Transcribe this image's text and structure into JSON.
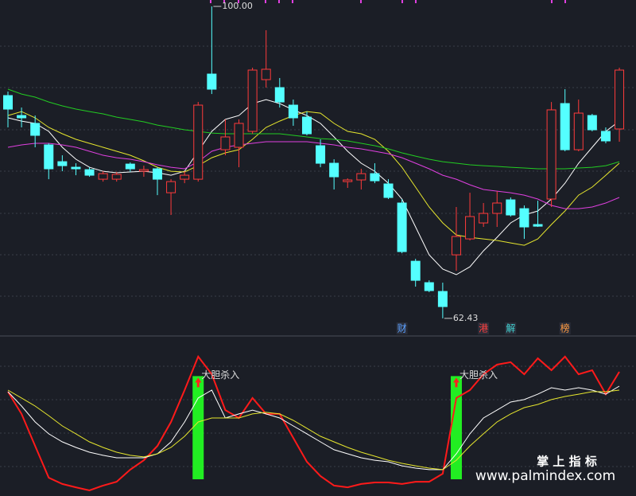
{
  "chart_data": [
    {
      "type": "candlestick",
      "ylim": [
        60.5,
        100.77
      ],
      "up_color": "#ff3b3b",
      "down_color": "#54ffff",
      "open": [
        89.26,
        86.86,
        85.91,
        83.32,
        81.3,
        80.63,
        80.34,
        79.19,
        79.19,
        81.01,
        80.15,
        80.44,
        77.56,
        79.19,
        79.19,
        91.85,
        82.74,
        83.03,
        84.95,
        91.18,
        90.22,
        88.11,
        86.67,
        83.22,
        81.11,
        78.9,
        79.1,
        79.86,
        78.62,
        76.32,
        69.31,
        66.73,
        65.67,
        70.08,
        72.0,
        73.92,
        75.07,
        76.7,
        75.64,
        73.73,
        76.8,
        88.3,
        82.74,
        86.86,
        84.95,
        85.24
      ],
      "close": [
        87.63,
        86.58,
        84.47,
        80.44,
        80.82,
        80.44,
        79.67,
        79.86,
        79.77,
        80.44,
        80.34,
        79.19,
        78.9,
        79.67,
        88.11,
        90.03,
        84.28,
        85.91,
        92.33,
        92.43,
        88.49,
        86.58,
        84.66,
        81.11,
        79.48,
        79.1,
        79.86,
        79.0,
        76.99,
        70.47,
        67.01,
        65.77,
        63.85,
        72.29,
        74.69,
        75.07,
        76.32,
        74.88,
        73.44,
        73.53,
        87.54,
        82.74,
        87.15,
        85.14,
        83.8,
        92.33
      ],
      "high": [
        89.74,
        87.82,
        86.86,
        83.51,
        82.07,
        81.11,
        80.63,
        80.15,
        80.06,
        81.21,
        80.82,
        80.63,
        79.19,
        80.15,
        88.49,
        100.0,
        86.39,
        86.39,
        92.62,
        97.13,
        91.37,
        88.78,
        87.34,
        83.99,
        81.59,
        79.29,
        80.44,
        81.11,
        79.19,
        76.8,
        69.6,
        67.01,
        66.73,
        75.84,
        77.56,
        76.32,
        77.75,
        76.99,
        76.03,
        76.6,
        88.49,
        90.03,
        88.78,
        87.06,
        85.43,
        92.62
      ],
      "low": [
        85.43,
        85.43,
        83.03,
        79.19,
        80.15,
        79.67,
        79.48,
        78.9,
        78.9,
        80.06,
        79.48,
        77.27,
        74.88,
        78.71,
        78.9,
        89.45,
        82.07,
        80.63,
        84.66,
        90.22,
        87.82,
        85.62,
        84.47,
        80.63,
        77.95,
        78.14,
        77.95,
        78.71,
        76.8,
        70.27,
        66.25,
        65.58,
        62.43,
        68.16,
        71.81,
        73.44,
        73.44,
        74.69,
        72.0,
        73.44,
        75.84,
        82.55,
        82.55,
        84.95,
        83.51,
        83.7
      ],
      "series": [
        {
          "color": "#ffffff",
          "values": [
            86.58,
            86.19,
            85.91,
            84.95,
            83.03,
            81.59,
            80.63,
            80.15,
            79.96,
            80.06,
            80.15,
            79.96,
            79.67,
            80.15,
            82.55,
            84.95,
            86.39,
            86.86,
            88.3,
            88.78,
            88.3,
            87.54,
            86.86,
            85.91,
            84.28,
            82.55,
            81.11,
            80.15,
            78.71,
            76.8,
            73.44,
            70.08,
            68.36,
            67.69,
            68.64,
            70.56,
            72.19,
            73.92,
            74.88,
            75.36,
            76.8,
            78.71,
            81.11,
            83.03,
            84.95,
            86.19
          ]
        },
        {
          "color": "#e6e62e",
          "values": [
            86.86,
            87.34,
            86.58,
            85.43,
            84.66,
            83.99,
            83.51,
            83.03,
            82.55,
            82.07,
            81.4,
            80.63,
            80.15,
            80.06,
            80.82,
            81.78,
            82.36,
            82.74,
            83.99,
            85.43,
            86.19,
            86.86,
            87.34,
            87.15,
            85.91,
            84.95,
            84.66,
            83.99,
            82.55,
            80.63,
            78.24,
            75.84,
            73.92,
            72.48,
            72.19,
            72.0,
            71.81,
            71.52,
            71.23,
            72.0,
            73.73,
            75.36,
            77.27,
            78.24,
            79.67,
            81.11
          ]
        },
        {
          "color": "#e040e0",
          "values": [
            83.03,
            83.32,
            83.51,
            83.51,
            83.32,
            83.03,
            82.55,
            82.07,
            81.78,
            81.59,
            81.3,
            80.92,
            80.63,
            80.44,
            81.3,
            82.55,
            83.03,
            83.32,
            83.51,
            83.7,
            83.7,
            83.7,
            83.7,
            83.51,
            83.32,
            83.03,
            82.84,
            82.55,
            82.26,
            81.78,
            81.11,
            80.44,
            79.67,
            79.19,
            78.52,
            77.95,
            77.75,
            77.56,
            77.27,
            76.8,
            76.03,
            75.64,
            75.64,
            75.84,
            76.32,
            76.99
          ]
        },
        {
          "color": "#22cc22",
          "values": [
            90.03,
            89.45,
            89.07,
            88.49,
            88.02,
            87.63,
            87.34,
            87.06,
            86.67,
            86.39,
            86.1,
            85.71,
            85.43,
            85.14,
            84.95,
            84.75,
            84.66,
            84.66,
            84.66,
            84.66,
            84.66,
            84.47,
            84.28,
            84.08,
            83.99,
            83.8,
            83.51,
            83.22,
            82.84,
            82.36,
            81.97,
            81.59,
            81.3,
            81.11,
            80.92,
            80.82,
            80.73,
            80.63,
            80.54,
            80.44,
            80.44,
            80.44,
            80.54,
            80.63,
            80.82,
            81.3
          ]
        }
      ],
      "annotations": [
        {
          "x": 15,
          "value": 100,
          "label": "100.00"
        },
        {
          "x": 32,
          "value": 62.43,
          "label": "62.43"
        }
      ],
      "events": [
        {
          "x": 29,
          "label": "财",
          "color": "#5aa0ff"
        },
        {
          "x": 35,
          "label": "港",
          "color": "#ff4040"
        },
        {
          "x": 37,
          "label": "解",
          "color": "#40d0d0"
        },
        {
          "x": 41,
          "label": "榜",
          "color": "#ff9a40"
        }
      ]
    },
    {
      "type": "line",
      "ylim": [
        0,
        100
      ],
      "series": [
        {
          "color": "#ff1a1a",
          "values": [
            71.1,
            55.6,
            33.3,
            11.1,
            6.7,
            4.4,
            2.2,
            5.6,
            8.3,
            16.7,
            23.3,
            33.3,
            50.0,
            72.2,
            95.6,
            83.3,
            58.3,
            52.8,
            66.7,
            55.6,
            55.6,
            38.9,
            22.2,
            12.2,
            5.6,
            4.4,
            6.7,
            7.8,
            7.8,
            6.7,
            8.3,
            8.3,
            13.9,
            66.7,
            72.2,
            83.3,
            90.0,
            91.7,
            83.3,
            94.4,
            86.1,
            95.6,
            83.3,
            86.1,
            69.4,
            85.0
          ]
        },
        {
          "color": "#ffffff",
          "values": [
            71.1,
            61.1,
            50.0,
            41.7,
            36.1,
            32.2,
            28.9,
            26.7,
            25.0,
            25.0,
            25.0,
            27.8,
            36.1,
            50.0,
            66.7,
            72.2,
            52.8,
            55.6,
            58.3,
            55.6,
            52.8,
            47.2,
            41.7,
            36.1,
            30.6,
            27.8,
            25.0,
            23.3,
            22.2,
            19.4,
            17.8,
            16.7,
            16.7,
            27.8,
            41.7,
            52.8,
            58.3,
            63.9,
            65.6,
            69.4,
            73.9,
            72.2,
            73.9,
            72.2,
            69.4,
            75.0
          ]
        },
        {
          "color": "#e6e62e",
          "values": [
            72.2,
            66.7,
            61.1,
            54.4,
            47.2,
            41.7,
            36.1,
            32.2,
            28.9,
            26.7,
            25.6,
            27.8,
            32.2,
            40.0,
            50.0,
            52.8,
            52.8,
            52.8,
            55.6,
            56.7,
            55.6,
            51.1,
            45.6,
            40.0,
            36.1,
            32.2,
            28.9,
            26.1,
            23.3,
            21.1,
            19.4,
            17.8,
            16.7,
            23.3,
            33.3,
            41.7,
            50.0,
            55.6,
            60.0,
            62.2,
            65.6,
            67.8,
            69.4,
            71.1,
            71.1,
            72.2
          ]
        }
      ],
      "signals": [
        {
          "x": 14,
          "low": 10,
          "high": 82,
          "label": "大胆杀入"
        },
        {
          "x": 33,
          "low": 10,
          "high": 82,
          "label": "大胆杀入"
        }
      ],
      "signal_color": "#22ee22"
    }
  ],
  "watermark": {
    "title": "掌 上 指 标",
    "url": "www.palmindex.com"
  }
}
